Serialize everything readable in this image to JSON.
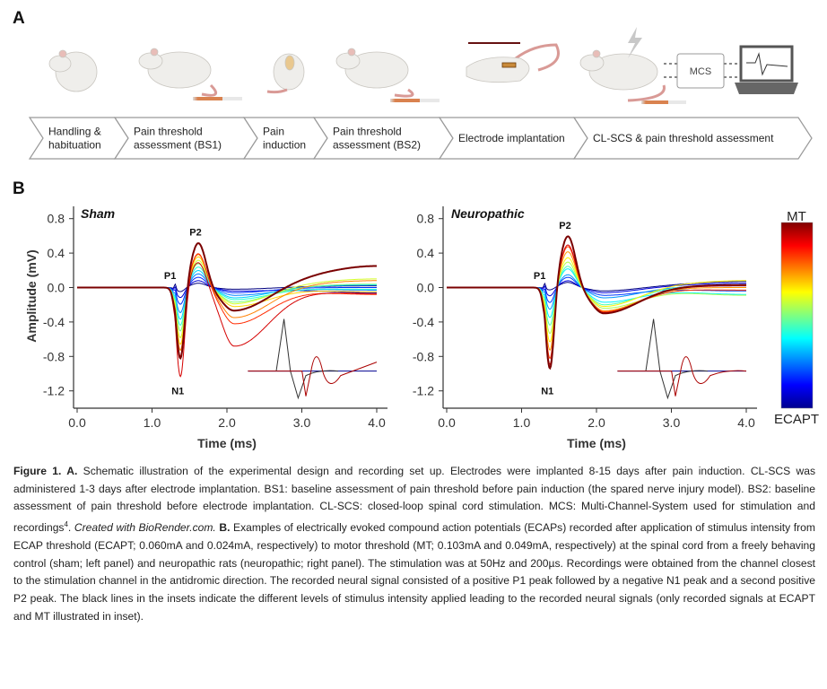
{
  "panel_a": {
    "letter": "A",
    "steps": [
      "Handling &|habituation",
      "Pain threshold|assessment (BS1)",
      "Pain|induction",
      "Pain threshold|assessment (BS2)",
      "Electrode implantation",
      "CL-SCS & pain threshold assessment"
    ],
    "mcs_label": "MCS"
  },
  "panel_b": {
    "letter": "B",
    "colorbar": {
      "top_label": "MT",
      "bottom_label": "ECAPT",
      "colormap": "jet"
    }
  },
  "chart_data": [
    {
      "type": "line",
      "title": "Sham",
      "xlabel": "Time (ms)",
      "ylabel": "Amplitude (mV)",
      "xlim": [
        0,
        4.0
      ],
      "ylim": [
        -1.4,
        0.9
      ],
      "xticks": [
        "0.0",
        "1.0",
        "2.0",
        "3.0",
        "4.0"
      ],
      "yticks": [
        "0.8",
        "0.4",
        "0.0",
        "-0.4",
        "-0.8",
        "-1.2"
      ],
      "annotations": [
        "P1",
        "N1",
        "P2"
      ],
      "series_note_fields": [
        "n1_mV",
        "p2_mV",
        "trough_mV",
        "end_mV"
      ],
      "traces": [
        [
          -0.05,
          0.05,
          -0.02,
          0.02
        ],
        [
          -0.12,
          0.08,
          -0.04,
          -0.06
        ],
        [
          -0.2,
          0.12,
          -0.06,
          0.0
        ],
        [
          -0.3,
          0.16,
          -0.09,
          -0.03
        ],
        [
          -0.38,
          0.2,
          -0.12,
          0.03
        ],
        [
          -0.45,
          0.24,
          -0.14,
          -0.02
        ],
        [
          -0.52,
          0.28,
          -0.17,
          0.04
        ],
        [
          -0.6,
          0.32,
          -0.19,
          0.1
        ],
        [
          -0.68,
          0.36,
          -0.22,
          -0.05
        ],
        [
          -0.75,
          0.39,
          -0.35,
          0.08
        ],
        [
          -0.82,
          0.4,
          -0.42,
          -0.08
        ],
        [
          -1.05,
          0.3,
          -0.68,
          -0.07
        ],
        [
          -0.85,
          0.52,
          -0.27,
          0.25
        ]
      ]
    },
    {
      "type": "line",
      "title": "Neuropathic",
      "xlabel": "Time (ms)",
      "ylabel": "",
      "xlim": [
        0,
        4.0
      ],
      "ylim": [
        -1.4,
        0.9
      ],
      "xticks": [
        "0.0",
        "1.0",
        "2.0",
        "3.0",
        "4.0"
      ],
      "yticks": [
        "0.8",
        "0.4",
        "0.0",
        "-0.4",
        "-0.8",
        "-1.2"
      ],
      "annotations": [
        "P1",
        "N1",
        "P2"
      ],
      "series_note_fields": [
        "n1_mV",
        "p2_mV",
        "trough_mV",
        "end_mV"
      ],
      "traces": [
        [
          -0.03,
          0.06,
          -0.04,
          0.07
        ],
        [
          -0.1,
          0.08,
          -0.06,
          0.05
        ],
        [
          -0.18,
          0.12,
          -0.09,
          -0.04
        ],
        [
          -0.26,
          0.15,
          -0.12,
          0.02
        ],
        [
          -0.36,
          0.22,
          -0.17,
          -0.08
        ],
        [
          -0.45,
          0.25,
          -0.2,
          0.03
        ],
        [
          -0.55,
          0.3,
          -0.24,
          -0.09
        ],
        [
          -0.65,
          0.35,
          -0.22,
          0.08
        ],
        [
          -0.75,
          0.42,
          -0.27,
          0.0
        ],
        [
          -0.85,
          0.48,
          -0.28,
          -0.03
        ],
        [
          -0.92,
          0.5,
          -0.29,
          0.02
        ],
        [
          -0.97,
          0.6,
          -0.3,
          0.03
        ]
      ]
    }
  ],
  "caption": {
    "fig_label": "Figure 1. A.",
    "a_text": " Schematic illustration of the experimental design and recording set up. Electrodes were implanted 8-15 days after pain induction. CL-SCS was administered 1-3 days after electrode implantation. BS1: baseline assessment of pain threshold before pain induction (the spared nerve injury model). BS2: baseline assessment of pain threshold before electrode implantation. CL-SCS: closed-loop spinal cord stimulation. MCS: Multi-Channel-System used for stimulation and recordings",
    "ref": "4",
    "a_sep": ". ",
    "credit": "Created with BioRender.com.",
    "b_label": "B.",
    "b_text": " Examples of electrically evoked compound action potentials (ECAPs) recorded after application of stimulus intensity from ECAP threshold (ECAPT; 0.060mA and 0.024mA, respectively) to motor threshold (MT; 0.103mA and 0.049mA, respectively) at the spinal cord from a freely behaving control (sham; left panel) and neuropathic rats (neuropathic; right panel). The stimulation was at 50Hz and 200µs. Recordings were obtained from the channel closest to the stimulation channel in the antidromic direction. The recorded neural signal consisted of a positive P1 peak followed by a negative N1 peak and a second positive P2 peak. The black lines in the insets indicate the different levels of stimulus intensity applied leading to the recorded neural signals (only recorded signals at ECAPT and MT illustrated in inset)."
  }
}
